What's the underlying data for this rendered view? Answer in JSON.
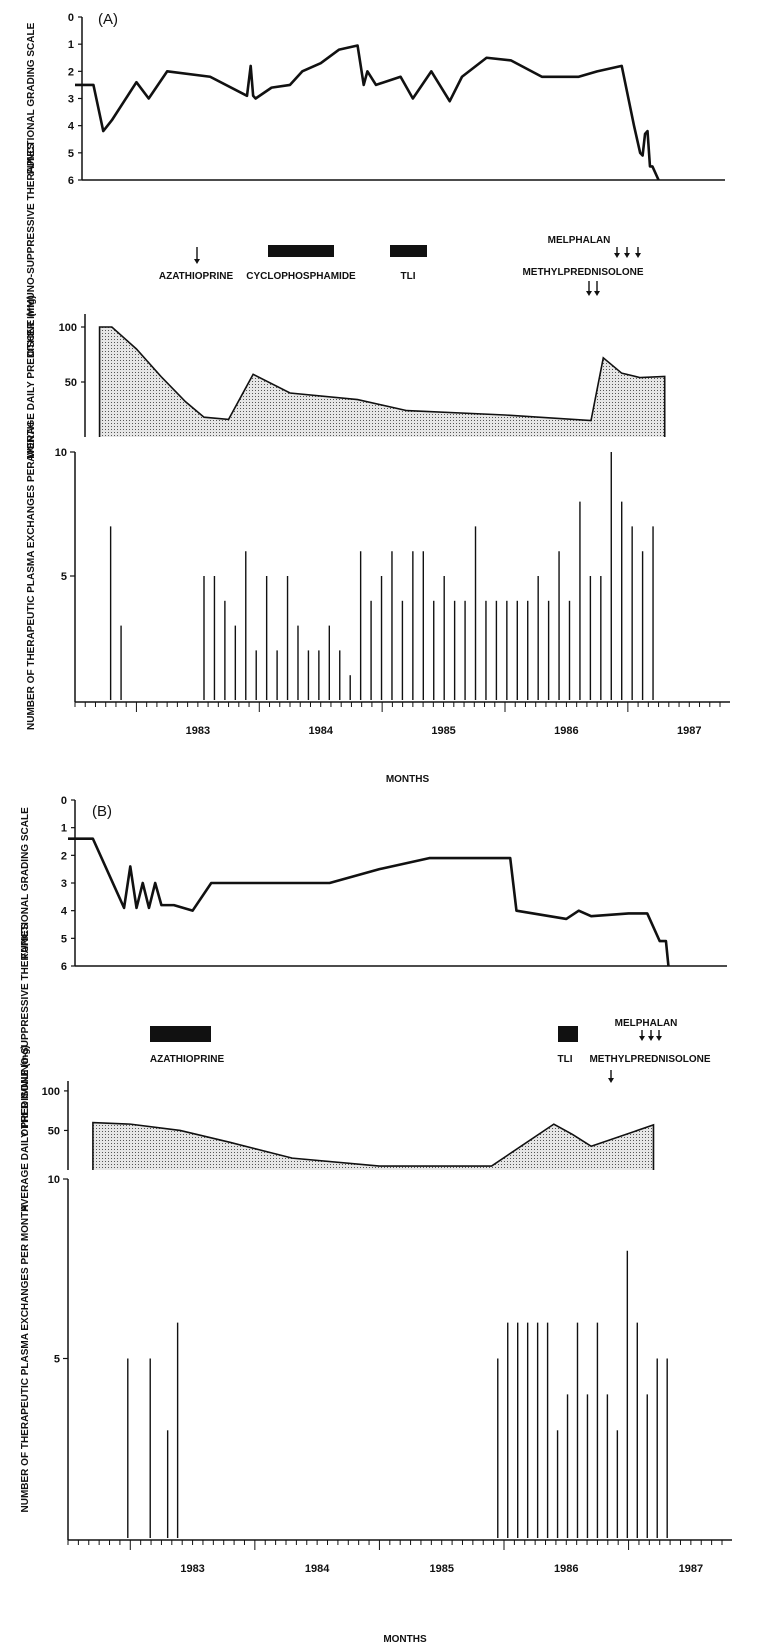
{
  "chart_data": [
    {
      "panel_label": "(A)",
      "x_axis": {
        "label": "MONTHS",
        "tick_labels": [
          "1983",
          "1984",
          "1985",
          "1986",
          "1987"
        ],
        "range": [
          1982.5,
          1987.75
        ]
      },
      "functional": {
        "type": "line",
        "ylabel": "FUNCTIONAL GRADING SCALE",
        "yticks": [
          "0",
          "1",
          "2",
          "3",
          "4",
          "5",
          "6"
        ],
        "ylim": [
          0,
          6
        ],
        "inverted": true,
        "x": [
          1982.5,
          1982.65,
          1982.73,
          1982.8,
          1983.0,
          1983.1,
          1983.25,
          1983.6,
          1983.9,
          1983.93,
          1983.95,
          1983.97,
          1984.1,
          1984.25,
          1984.35,
          1984.5,
          1984.65,
          1984.8,
          1984.85,
          1984.88,
          1984.95,
          1985.15,
          1985.25,
          1985.4,
          1985.55,
          1985.65,
          1985.85,
          1986.05,
          1986.3,
          1986.6,
          1986.75,
          1986.95,
          1987.05,
          1987.1,
          1987.12,
          1987.14,
          1987.16,
          1987.18,
          1987.2,
          1987.25
        ],
        "y": [
          2.5,
          2.5,
          4.2,
          3.8,
          2.4,
          3.0,
          2.0,
          2.2,
          2.9,
          1.8,
          2.9,
          3.0,
          2.6,
          2.5,
          2.0,
          1.7,
          1.2,
          1.05,
          2.5,
          2.0,
          2.5,
          2.2,
          3.0,
          2.0,
          3.1,
          2.2,
          1.5,
          1.6,
          2.2,
          2.2,
          2.0,
          1.8,
          4.0,
          5.0,
          5.1,
          4.3,
          4.2,
          5.5,
          5.5,
          6.0
        ]
      },
      "therapies": {
        "ylabel": "OTHER IMMUNO-SUPPRESSIVE THERAPIES",
        "bars": [
          {
            "label": "CYCLOPHOSPHAMIDE",
            "start": 1983.95,
            "end": 1984.5
          },
          {
            "label": "TLI",
            "start": 1984.75,
            "end": 1985.05
          }
        ],
        "arrows": [
          {
            "label": "AZATHIOPRINE",
            "x": [
              1983.45
            ]
          },
          {
            "label": "MELPHALAN",
            "x": [
              1986.78,
              1986.87,
              1986.95
            ]
          },
          {
            "label": "METHYLPREDNISOLONE",
            "x": [
              1986.47,
              1986.53
            ]
          }
        ]
      },
      "prednisone": {
        "type": "area",
        "ylabel": "AVERAGE DAILY PREDISONE (mg)",
        "yticks": [
          "100",
          "50"
        ],
        "ylim": [
          0,
          110
        ],
        "x": [
          1982.7,
          1982.8,
          1983.0,
          1983.2,
          1983.4,
          1983.55,
          1983.75,
          1983.95,
          1984.25,
          1984.8,
          1985.2,
          1986.0,
          1986.7,
          1986.8,
          1986.95,
          1987.1,
          1987.3
        ],
        "y": [
          100,
          100,
          80,
          55,
          32,
          18,
          16,
          57,
          40,
          34,
          24,
          20,
          15,
          72,
          58,
          54,
          55
        ]
      },
      "exchanges": {
        "type": "bar",
        "ylabel": "NUMBER OF THERAPEUTIC PLASMA EXCHANGES PER MONTH",
        "yticks": [
          "5",
          "10"
        ],
        "ylim": [
          0,
          10
        ],
        "x": [
          1982.79,
          1982.875,
          1983.55,
          1983.635,
          1983.72,
          1983.805,
          1983.89,
          1983.975,
          1984.06,
          1984.145,
          1984.23,
          1984.315,
          1984.4,
          1984.485,
          1984.57,
          1984.655,
          1984.74,
          1984.825,
          1984.91,
          1984.995,
          1985.08,
          1985.165,
          1985.25,
          1985.335,
          1985.42,
          1985.505,
          1985.59,
          1985.675,
          1985.76,
          1985.845,
          1985.93,
          1986.015,
          1986.1,
          1986.185,
          1986.27,
          1986.355,
          1986.44,
          1986.525,
          1986.61,
          1986.695,
          1986.78,
          1986.865,
          1986.95,
          1987.035,
          1987.12,
          1987.205
        ],
        "values": [
          7,
          3,
          5,
          5,
          4,
          3,
          6,
          2,
          5,
          2,
          5,
          3,
          2,
          2,
          3,
          2,
          1,
          6,
          4,
          5,
          6,
          4,
          6,
          6,
          4,
          5,
          4,
          4,
          7,
          4,
          4,
          4,
          4,
          4,
          5,
          4,
          6,
          4,
          8,
          5,
          5,
          10,
          8,
          7,
          6,
          7
        ]
      }
    },
    {
      "panel_label": "(B)",
      "x_axis": {
        "label": "MONTHS",
        "tick_labels": [
          "1983",
          "1984",
          "1985",
          "1986",
          "1987"
        ],
        "range": [
          1982.5,
          1987.75
        ]
      },
      "functional": {
        "type": "line",
        "ylabel": "FUNCTIONAL GRADING SCALE",
        "yticks": [
          "0",
          "1",
          "2",
          "3",
          "4",
          "5",
          "6"
        ],
        "ylim": [
          0,
          6
        ],
        "inverted": true,
        "x": [
          1982.5,
          1982.7,
          1982.95,
          1983.0,
          1983.05,
          1983.1,
          1983.15,
          1983.2,
          1983.25,
          1983.3,
          1983.35,
          1983.5,
          1983.65,
          1984.0,
          1984.6,
          1985.0,
          1985.4,
          1986.05,
          1986.1,
          1986.5,
          1986.6,
          1986.7,
          1987.0,
          1987.15,
          1987.25,
          1987.3,
          1987.32
        ],
        "y": [
          1.4,
          1.4,
          3.9,
          2.4,
          3.9,
          3.0,
          3.9,
          3.0,
          3.8,
          3.8,
          3.8,
          4.0,
          3.0,
          3.0,
          3.0,
          2.5,
          2.1,
          2.1,
          4.0,
          4.3,
          4.0,
          4.2,
          4.1,
          4.1,
          5.1,
          5.1,
          6.0
        ]
      },
      "therapies": {
        "ylabel": "OTHER IMMUNO-SUPPRESSIVE THERAPIES",
        "bars": [
          {
            "label": "AZATHIOPRINE",
            "start": 1983.05,
            "end": 1983.55
          },
          {
            "label": "TLI",
            "start": 1986.15,
            "end": 1986.35
          }
        ],
        "arrows": [
          {
            "label": "MELPHALAN",
            "x": [
              1986.98,
              1987.05,
              1987.12
            ]
          },
          {
            "label": "METHYLPREDNISOLONE",
            "x": [
              1986.72
            ]
          }
        ]
      },
      "prednisone": {
        "type": "area",
        "ylabel": "AVERAGE DAILY PREDISONE (mg)",
        "yticks": [
          "100",
          "50"
        ],
        "ylim": [
          0,
          110
        ],
        "x": [
          1982.7,
          1983.0,
          1983.4,
          1983.8,
          1984.3,
          1985.0,
          1985.9,
          1986.4,
          1986.55,
          1986.7,
          1987.2
        ],
        "y": [
          60,
          58,
          50,
          35,
          15,
          5,
          5,
          58,
          45,
          30,
          57
        ]
      },
      "exchanges": {
        "type": "bar",
        "ylabel": "NUMBER OF THERAPEUTIC PLASMA EXCHANGES PER MONTH",
        "yticks": [
          "5",
          "10"
        ],
        "ylim": [
          0,
          10
        ],
        "x": [
          1982.98,
          1983.16,
          1983.3,
          1983.38,
          1985.95,
          1986.03,
          1986.11,
          1986.19,
          1986.27,
          1986.35,
          1986.43,
          1986.51,
          1986.59,
          1986.67,
          1986.75,
          1986.83,
          1986.91,
          1986.99,
          1987.07,
          1987.15,
          1987.23,
          1987.31
        ],
        "values": [
          5,
          5,
          3,
          6,
          5,
          6,
          6,
          6,
          6,
          6,
          3,
          4,
          6,
          4,
          6,
          4,
          3,
          8,
          6,
          4,
          5,
          5
        ]
      }
    }
  ]
}
